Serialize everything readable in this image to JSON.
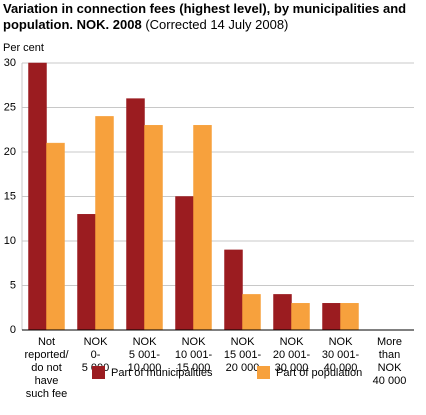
{
  "chart_data": {
    "type": "bar",
    "title": "Variation in connection fees (highest level), by municipalities and population. NOK. 2008",
    "subtitle": "(Corrected 14 July 2008)",
    "ylabel": "Per cent",
    "categories": [
      [
        "Not",
        "reported/",
        "do not",
        "have",
        "such fee"
      ],
      [
        "NOK",
        "0-",
        "5 000"
      ],
      [
        "NOK",
        "5 001-",
        "10 000"
      ],
      [
        "NOK",
        "10 001-",
        "15 000"
      ],
      [
        "NOK",
        "15 001-",
        "20 000"
      ],
      [
        "NOK",
        "20 001-",
        "30 000"
      ],
      [
        "NOK",
        "30 001-",
        "40 000"
      ],
      [
        "More",
        "than",
        "NOK",
        "40 000"
      ]
    ],
    "series": [
      {
        "name": "Part of municipalities",
        "color": "#9b1c20",
        "values": [
          30,
          13,
          26,
          15,
          9,
          4,
          3,
          0
        ]
      },
      {
        "name": "Part of population",
        "color": "#f7a13d",
        "values": [
          21,
          24,
          23,
          23,
          4,
          3,
          3,
          0
        ]
      }
    ],
    "ylim": [
      0,
      30
    ],
    "yticks": [
      0,
      5,
      10,
      15,
      20,
      25,
      30
    ],
    "grid": true
  }
}
